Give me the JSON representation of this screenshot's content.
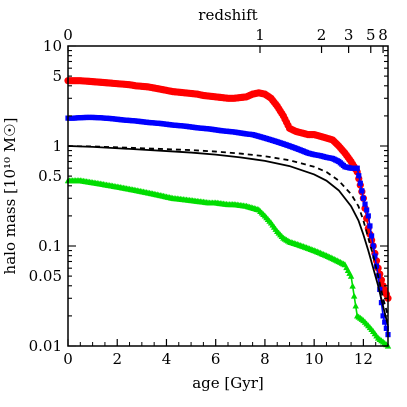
{
  "chart_data": {
    "type": "line",
    "xlabel": "age [Gyr]",
    "ylabel": "halo mass [10¹⁰ M☉]",
    "top_axis_label": "redshift",
    "xlim": [
      0,
      13
    ],
    "ylim": [
      0.01,
      10
    ],
    "y_scale": "log",
    "grid": false,
    "x_ticks": [
      0,
      2,
      4,
      6,
      8,
      10,
      12
    ],
    "x_tick_labels": [
      "0",
      "2",
      "4",
      "6",
      "8",
      "10",
      "12"
    ],
    "y_ticks": [
      0.01,
      0.05,
      0.1,
      0.5,
      1,
      5,
      10
    ],
    "y_tick_labels": [
      "0.01",
      "0.05",
      "0.1",
      "0.5",
      "1",
      "5",
      "10"
    ],
    "top_ticks": [
      {
        "label": "0",
        "age": 0.0
      },
      {
        "label": "1",
        "age": 7.8
      },
      {
        "label": "2",
        "age": 10.3
      },
      {
        "label": "3",
        "age": 11.4
      },
      {
        "label": "5",
        "age": 12.3
      },
      {
        "label": "8",
        "age": 12.8
      }
    ],
    "series": [
      {
        "color": "#ff0000",
        "marker": "circle",
        "x": [
          0,
          0.25,
          0.5,
          0.75,
          1,
          1.25,
          1.5,
          1.75,
          2,
          2.25,
          2.5,
          2.75,
          3,
          3.25,
          3.5,
          3.75,
          4,
          4.25,
          4.5,
          4.75,
          5,
          5.25,
          5.5,
          5.75,
          6,
          6.25,
          6.5,
          6.75,
          7,
          7.25,
          7.5,
          7.75,
          8,
          8.25,
          8.5,
          8.75,
          9,
          9.25,
          9.5,
          9.75,
          10,
          10.25,
          10.5,
          10.75,
          11,
          11.25,
          11.5,
          11.75,
          12,
          12.2,
          12.4,
          12.6,
          12.8,
          13
        ],
        "y": [
          4.5,
          4.5,
          4.5,
          4.45,
          4.4,
          4.35,
          4.3,
          4.25,
          4.2,
          4.15,
          4.1,
          4.0,
          3.95,
          3.9,
          3.8,
          3.7,
          3.6,
          3.5,
          3.45,
          3.4,
          3.35,
          3.3,
          3.2,
          3.15,
          3.1,
          3.05,
          3.0,
          3.0,
          3.05,
          3.1,
          3.3,
          3.4,
          3.3,
          3.0,
          2.5,
          2.0,
          1.5,
          1.4,
          1.35,
          1.3,
          1.3,
          1.25,
          1.2,
          1.15,
          1.0,
          0.85,
          0.7,
          0.55,
          0.3,
          0.15,
          0.1,
          0.06,
          0.04,
          0.03
        ]
      },
      {
        "color": "#0000ff",
        "marker": "square",
        "x": [
          0,
          0.25,
          0.5,
          0.75,
          1,
          1.25,
          1.5,
          1.75,
          2,
          2.25,
          2.5,
          2.75,
          3,
          3.25,
          3.5,
          3.75,
          4,
          4.25,
          4.5,
          4.75,
          5,
          5.25,
          5.5,
          5.75,
          6,
          6.25,
          6.5,
          6.75,
          7,
          7.25,
          7.5,
          7.75,
          8,
          8.25,
          8.5,
          8.75,
          9,
          9.25,
          9.5,
          9.75,
          10,
          10.25,
          10.5,
          10.75,
          11,
          11.25,
          11.5,
          11.75,
          12,
          12.2,
          12.4,
          12.6,
          12.8,
          13
        ],
        "y": [
          1.9,
          1.9,
          1.92,
          1.93,
          1.93,
          1.92,
          1.9,
          1.88,
          1.85,
          1.82,
          1.8,
          1.78,
          1.75,
          1.72,
          1.7,
          1.68,
          1.65,
          1.62,
          1.6,
          1.58,
          1.55,
          1.52,
          1.5,
          1.48,
          1.45,
          1.42,
          1.4,
          1.38,
          1.35,
          1.32,
          1.3,
          1.25,
          1.2,
          1.15,
          1.1,
          1.05,
          1.0,
          0.95,
          0.9,
          0.85,
          0.82,
          0.8,
          0.77,
          0.75,
          0.7,
          0.62,
          0.6,
          0.6,
          0.3,
          0.2,
          0.1,
          0.05,
          0.02,
          0.013
        ]
      },
      {
        "color": "#00dd00",
        "marker": "triangle",
        "x": [
          0,
          0.25,
          0.5,
          0.75,
          1,
          1.25,
          1.5,
          1.75,
          2,
          2.25,
          2.5,
          2.75,
          3,
          3.25,
          3.5,
          3.75,
          4,
          4.25,
          4.5,
          4.75,
          5,
          5.25,
          5.5,
          5.75,
          6,
          6.25,
          6.5,
          6.75,
          7,
          7.25,
          7.5,
          7.75,
          8,
          8.25,
          8.5,
          8.75,
          9,
          9.25,
          9.5,
          9.75,
          10,
          10.25,
          10.5,
          10.75,
          11,
          11.25,
          11.5,
          11.75,
          12,
          12.2,
          12.4,
          12.6,
          12.8,
          13
        ],
        "y": [
          0.45,
          0.45,
          0.45,
          0.44,
          0.43,
          0.42,
          0.41,
          0.4,
          0.39,
          0.38,
          0.37,
          0.36,
          0.35,
          0.34,
          0.33,
          0.32,
          0.31,
          0.3,
          0.295,
          0.29,
          0.285,
          0.28,
          0.275,
          0.27,
          0.27,
          0.265,
          0.26,
          0.26,
          0.255,
          0.25,
          0.24,
          0.23,
          0.2,
          0.17,
          0.14,
          0.12,
          0.11,
          0.105,
          0.1,
          0.095,
          0.09,
          0.085,
          0.08,
          0.075,
          0.07,
          0.065,
          0.05,
          0.02,
          0.018,
          0.016,
          0.014,
          0.012,
          0.011,
          0.01
        ]
      },
      {
        "color": "#000000",
        "dash": "solid",
        "marker": "none",
        "x": [
          0,
          1,
          2,
          3,
          4,
          5,
          6,
          7,
          8,
          9,
          10,
          10.5,
          11,
          11.5,
          11.8,
          12,
          12.2,
          12.4,
          12.6,
          12.8,
          13
        ],
        "y": [
          1.0,
          0.98,
          0.95,
          0.92,
          0.89,
          0.86,
          0.82,
          0.77,
          0.71,
          0.63,
          0.52,
          0.45,
          0.36,
          0.25,
          0.18,
          0.13,
          0.09,
          0.06,
          0.04,
          0.025,
          0.016
        ]
      },
      {
        "color": "#000000",
        "dash": "dashed",
        "marker": "none",
        "x": [
          0,
          1,
          2,
          3,
          4,
          5,
          6,
          7,
          8,
          9,
          10,
          10.5,
          11,
          11.5,
          11.8,
          12,
          12.2,
          12.4,
          12.6,
          12.8,
          13
        ],
        "y": [
          1.0,
          0.99,
          0.97,
          0.95,
          0.93,
          0.91,
          0.88,
          0.84,
          0.79,
          0.72,
          0.62,
          0.55,
          0.45,
          0.33,
          0.25,
          0.18,
          0.12,
          0.08,
          0.05,
          0.03,
          0.02
        ]
      }
    ]
  }
}
